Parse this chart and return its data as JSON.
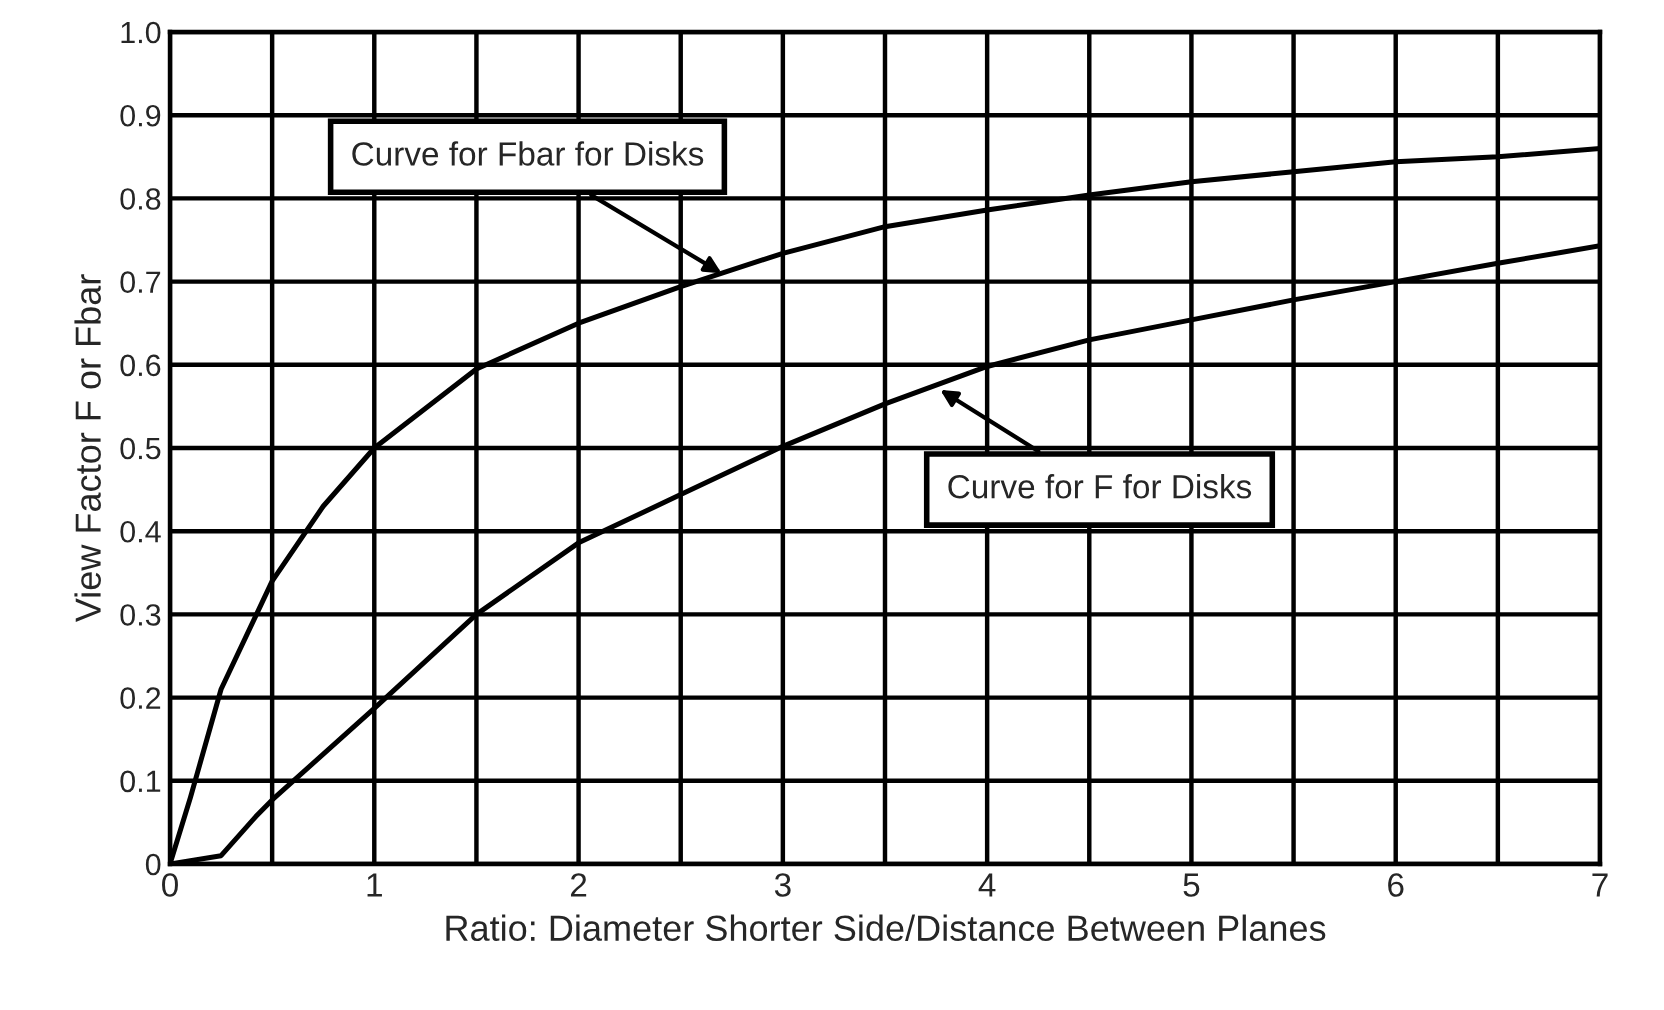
{
  "chart_data": {
    "type": "line",
    "xlabel": "Ratio: Diameter Shorter Side/Distance Between Planes",
    "ylabel": "View Factor F or Fbar",
    "series": [
      {
        "color": "#000000",
        "x": [
          0,
          0.1,
          0.25,
          0.5,
          0.75,
          1,
          1.5,
          2,
          2.5,
          3,
          3.5,
          4,
          4.5,
          5,
          5.5,
          6,
          6.5,
          7
        ],
        "values": [
          0,
          0.08,
          0.21,
          0.34,
          0.43,
          0.5,
          0.595,
          0.65,
          0.694,
          0.734,
          0.766,
          0.786,
          0.804,
          0.82,
          0.832,
          0.844,
          0.85,
          0.86
        ]
      },
      {
        "color": "#000000",
        "x": [
          0,
          0.25,
          0.42,
          0.5,
          1,
          1.5,
          2,
          2.5,
          3,
          3.5,
          4,
          4.5,
          5,
          5.5,
          6,
          6.5,
          7
        ],
        "values": [
          0,
          0.01,
          0.057,
          0.077,
          0.187,
          0.3,
          0.386,
          0.444,
          0.502,
          0.553,
          0.598,
          0.63,
          0.654,
          0.678,
          0.7,
          0.722,
          0.743
        ]
      }
    ],
    "annotations": [
      {
        "text": "Curve for Fbar for Disks",
        "x": 2.7,
        "y": 0.71
      },
      {
        "text": "Curve for F for Disks",
        "x": 3.77,
        "y": 0.57
      }
    ],
    "xlim": [
      0,
      7
    ],
    "xticks": [
      0,
      {
        "value": 0.5,
        "label": null
      },
      1,
      {
        "value": 1.5,
        "label": null
      },
      2,
      {
        "value": 2.5,
        "label": null
      },
      3,
      {
        "value": 3.5,
        "label": null
      },
      4,
      {
        "value": 4.5,
        "label": null
      },
      5,
      {
        "value": 5.5,
        "label": null
      },
      6,
      {
        "value": 6.5,
        "label": null
      },
      7
    ],
    "ylim": [
      0,
      1
    ],
    "yticks": [
      0,
      0.1,
      0.2,
      0.3,
      0.4,
      0.5,
      0.6,
      0.7,
      0.8,
      0.9,
      {
        "value": 1,
        "label": "1.0"
      }
    ],
    "grid": true,
    "legend": false,
    "line_style": "solid"
  }
}
